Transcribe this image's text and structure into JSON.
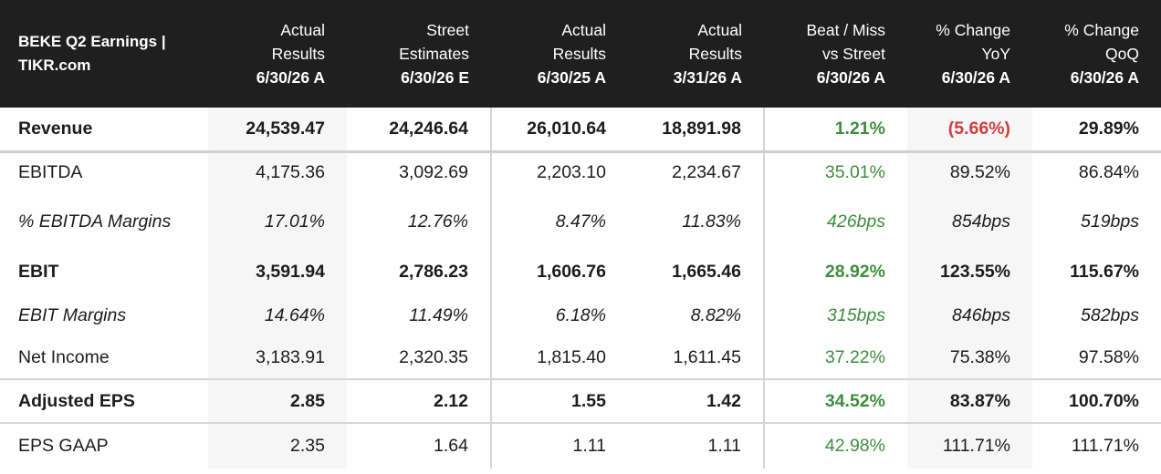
{
  "header": {
    "title_line1": "BEKE Q2 Earnings |",
    "title_line2": "TIKR.com",
    "columns": [
      {
        "line1": "Actual",
        "line2": "Results",
        "date": "6/30/26 A"
      },
      {
        "line1": "Street",
        "line2": "Estimates",
        "date": "6/30/26 E"
      },
      {
        "line1": "Actual",
        "line2": "Results",
        "date": "6/30/25 A"
      },
      {
        "line1": "Actual",
        "line2": "Results",
        "date": "3/31/26 A"
      },
      {
        "line1": "Beat / Miss",
        "line2": "vs Street",
        "date": "6/30/26 A"
      },
      {
        "line1": "% Change",
        "line2": "YoY",
        "date": "6/30/26 A"
      },
      {
        "line1": "% Change",
        "line2": "QoQ",
        "date": "6/30/26 A"
      }
    ]
  },
  "colors": {
    "positive": "#3e8e3e",
    "negative": "#d23f3f",
    "header_bg": "#1f1f1f"
  },
  "rows": [
    {
      "label": "Revenue",
      "values": [
        "24,539.47",
        "24,246.64",
        "26,010.64",
        "18,891.98",
        "1.21%",
        "(5.66%)",
        "29.89%"
      ]
    },
    {
      "label": "EBITDA",
      "values": [
        "4,175.36",
        "3,092.69",
        "2,203.10",
        "2,234.67",
        "35.01%",
        "89.52%",
        "86.84%"
      ]
    },
    {
      "label": "% EBITDA Margins",
      "values": [
        "17.01%",
        "12.76%",
        "8.47%",
        "11.83%",
        "426bps",
        "854bps",
        "519bps"
      ]
    },
    {
      "label": "EBIT",
      "values": [
        "3,591.94",
        "2,786.23",
        "1,606.76",
        "1,665.46",
        "28.92%",
        "123.55%",
        "115.67%"
      ]
    },
    {
      "label": "EBIT Margins",
      "values": [
        "14.64%",
        "11.49%",
        "6.18%",
        "8.82%",
        "315bps",
        "846bps",
        "582bps"
      ]
    },
    {
      "label": "Net Income",
      "values": [
        "3,183.91",
        "2,320.35",
        "1,815.40",
        "1,611.45",
        "37.22%",
        "75.38%",
        "97.58%"
      ]
    },
    {
      "label": "Adjusted EPS",
      "values": [
        "2.85",
        "2.12",
        "1.55",
        "1.42",
        "34.52%",
        "83.87%",
        "100.70%"
      ]
    },
    {
      "label": "EPS GAAP",
      "values": [
        "2.35",
        "1.64",
        "1.11",
        "1.11",
        "42.98%",
        "111.71%",
        "111.71%"
      ]
    }
  ]
}
